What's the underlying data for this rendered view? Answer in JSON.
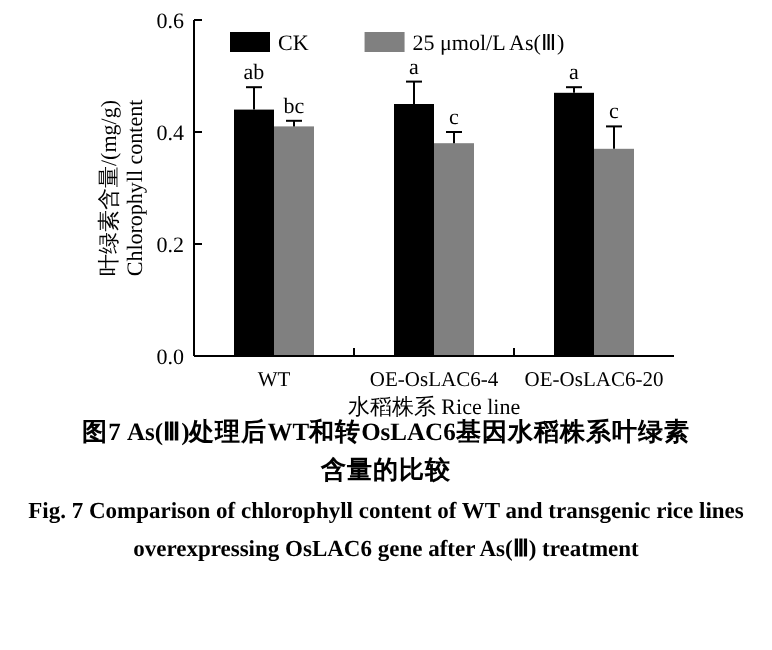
{
  "chart_data": {
    "type": "bar",
    "title": "图7 As(Ⅲ)处理后WT和转OsLAC6基因水稻株系叶绿素含量的比较",
    "subtitle": "Fig. 7 Comparison of chlorophyll content of WT and transgenic rice lines overexpressing OsLAC6 gene after As(Ⅲ) treatment",
    "xlabel": "水稻株系 Rice line",
    "ylabel": "叶绿素含量/(mg/g)\nChlorophyll content",
    "categories": [
      "WT",
      "OE-OsLAC6-4",
      "OE-OsLAC6-20"
    ],
    "series": [
      {
        "name": "CK",
        "color": "#000000",
        "values": [
          0.44,
          0.45,
          0.47
        ],
        "errors": [
          0.04,
          0.04,
          0.01
        ]
      },
      {
        "name": "25 μmol/L As(Ⅲ)",
        "color": "#808080",
        "values": [
          0.41,
          0.38,
          0.37
        ],
        "errors": [
          0.01,
          0.02,
          0.04
        ]
      }
    ],
    "ylim": [
      0,
      0.6
    ],
    "yticks": [
      {
        "value": 0,
        "label": "0.0"
      },
      {
        "value": 0.2,
        "label": "0.2"
      },
      {
        "value": 0.4,
        "label": "0.4"
      },
      {
        "value": 0.6,
        "label": "0.6"
      }
    ],
    "legend": "top",
    "grid": false,
    "annotations": [
      "ab",
      "bc",
      "a",
      "c",
      "a",
      "c"
    ]
  }
}
